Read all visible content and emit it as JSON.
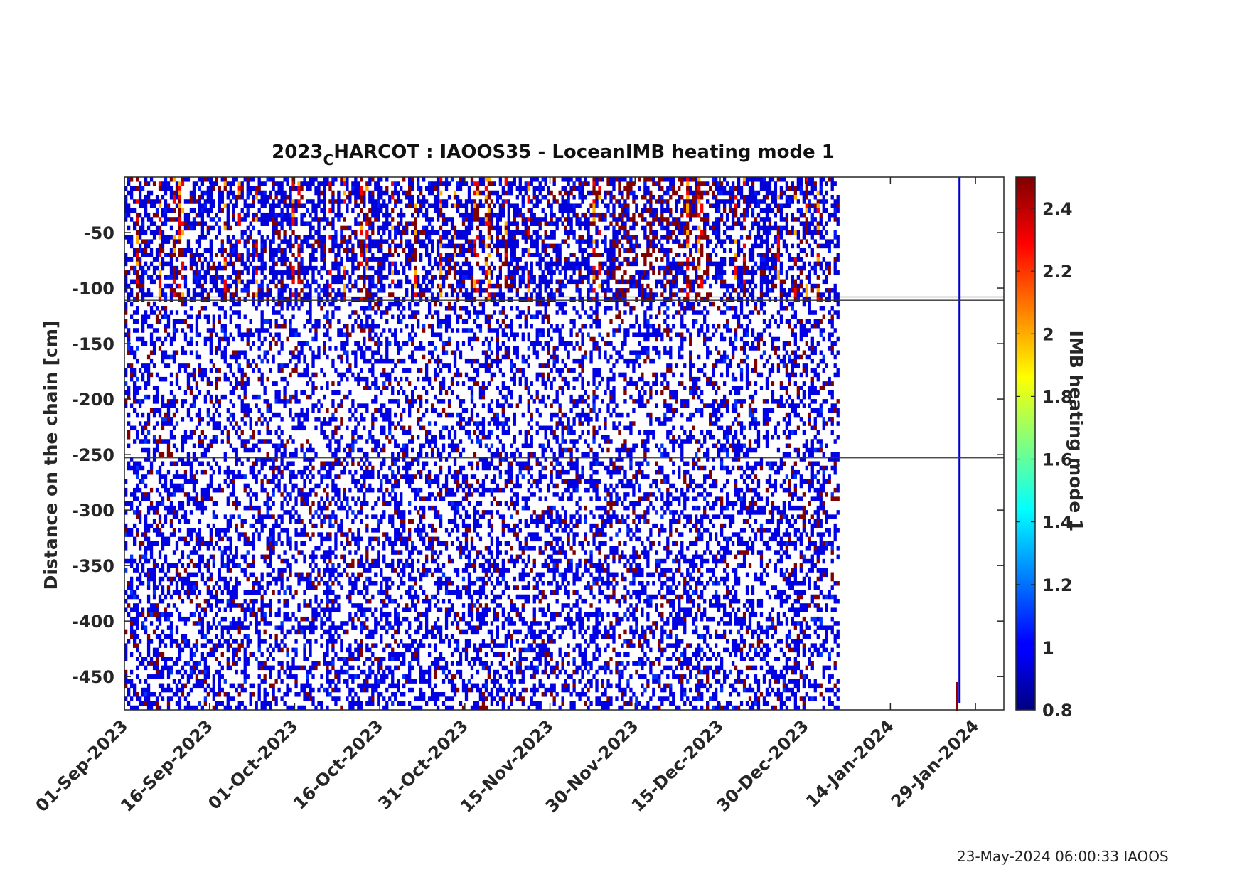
{
  "chart_data": {
    "type": "heatmap",
    "title_main": "2023",
    "title_sub": "C",
    "title_rest": "HARCOT : IAOOS35 - LoceanIMB heating mode 1",
    "ylabel": "Distance on the chain [cm]",
    "colorbar_label": "IMB heating mode 1",
    "x_ticks": [
      "01-Sep-2023",
      "16-Sep-2023",
      "01-Oct-2023",
      "16-Oct-2023",
      "31-Oct-2023",
      "15-Nov-2023",
      "30-Nov-2023",
      "15-Dec-2023",
      "30-Dec-2023",
      "14-Jan-2024",
      "29-Jan-2024"
    ],
    "x_range": [
      "01-Sep-2023",
      "03-Feb-2024"
    ],
    "data_end": "05-Jan-2024",
    "isolated_column": "26-Jan-2024",
    "y_ticks": [
      -50,
      -100,
      -150,
      -200,
      -250,
      -300,
      -350,
      -400,
      -450
    ],
    "y_range": [
      -480,
      0
    ],
    "horizontal_lines": [
      -108,
      -111,
      -253
    ],
    "colorbar_ticks": [
      2.4,
      2.2,
      2,
      1.8,
      1.6,
      1.4,
      1.2,
      1,
      0.8
    ],
    "colorbar_ticks_text": [
      "2.4",
      "2.2",
      "2",
      "1.8",
      "1.6",
      "1.4",
      "1.2",
      "1",
      "0.8"
    ],
    "color_range": [
      0.8,
      2.5
    ],
    "colormap": "jet",
    "grid": false
  },
  "footer": "23-May-2024 06:00:33 IAOOS"
}
